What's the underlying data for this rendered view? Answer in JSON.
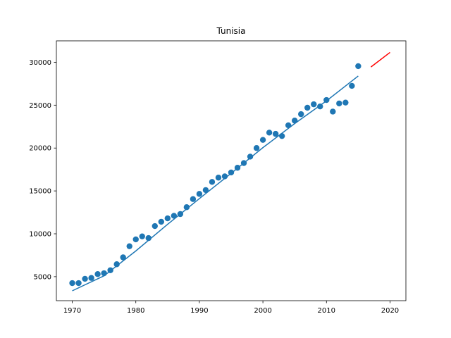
{
  "chart_data": {
    "type": "scatter",
    "title": "Tunisia",
    "xlabel": "",
    "ylabel": "",
    "xlim": [
      1967.5,
      2022.5
    ],
    "ylim": [
      2200,
      32500
    ],
    "grid": false,
    "xticks": [
      1970,
      1980,
      1990,
      2000,
      2010,
      2020
    ],
    "yticks": [
      5000,
      10000,
      15000,
      20000,
      25000,
      30000
    ],
    "series": [
      {
        "kind": "scatter",
        "color": "#1f77b4",
        "x": [
          1970,
          1971,
          1972,
          1973,
          1974,
          1975,
          1976,
          1977,
          1978,
          1979,
          1980,
          1981,
          1982,
          1983,
          1984,
          1985,
          1986,
          1987,
          1988,
          1989,
          1990,
          1991,
          1992,
          1993,
          1994,
          1995,
          1996,
          1997,
          1998,
          1999,
          2000,
          2001,
          2002,
          2003,
          2004,
          2005,
          2006,
          2007,
          2008,
          2009,
          2010,
          2011,
          2012,
          2013,
          2014,
          2015
        ],
        "y": [
          4250,
          4250,
          4750,
          4850,
          5300,
          5400,
          5750,
          6450,
          7250,
          8550,
          9350,
          9700,
          9500,
          10900,
          11400,
          11800,
          12100,
          12300,
          13100,
          14050,
          14650,
          15100,
          16050,
          16550,
          16700,
          17150,
          17700,
          18250,
          19000,
          20000,
          20950,
          21800,
          21650,
          21400,
          22650,
          23200,
          23950,
          24700,
          25100,
          24850,
          25600,
          24250,
          25200,
          25300,
          27250,
          29550
        ]
      },
      {
        "kind": "line",
        "color": "#1f77b4",
        "x": [
          1970,
          1975,
          1980,
          1985,
          1990,
          1995,
          2000,
          2005,
          2010,
          2015
        ],
        "y": [
          3350,
          5100,
          8000,
          11100,
          14100,
          17050,
          20050,
          22850,
          25500,
          28400
        ]
      },
      {
        "kind": "line",
        "color": "#ff0000",
        "x": [
          2017,
          2020
        ],
        "y": [
          29450,
          31150
        ]
      }
    ]
  }
}
